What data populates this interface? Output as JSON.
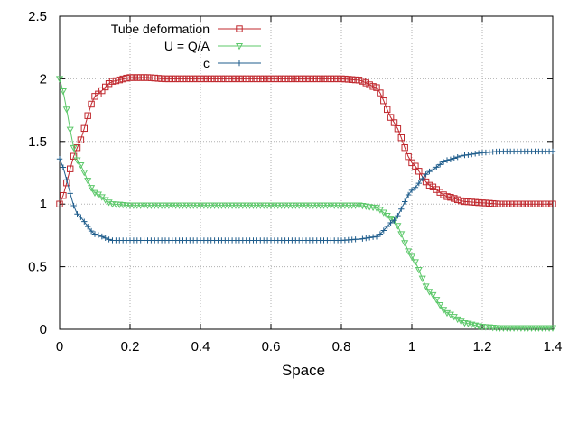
{
  "chart_data": {
    "type": "line",
    "title": "",
    "xlabel": "Space",
    "ylabel": "",
    "xlim": [
      0,
      1.4
    ],
    "ylim": [
      0,
      2.5
    ],
    "grid": true,
    "legend_position": "top-left",
    "x_ticks": [
      {
        "value": 0,
        "label": "0"
      },
      {
        "value": 0.2,
        "label": "0.2"
      },
      {
        "value": 0.4,
        "label": "0.4"
      },
      {
        "value": 0.6,
        "label": "0.6"
      },
      {
        "value": 0.8,
        "label": "0.8"
      },
      {
        "value": 1.0,
        "label": "1"
      },
      {
        "value": 1.2,
        "label": "1.2"
      },
      {
        "value": 1.4,
        "label": "1.4"
      }
    ],
    "y_ticks": [
      {
        "value": 0,
        "label": "0"
      },
      {
        "value": 0.5,
        "label": "0.5"
      },
      {
        "value": 1.0,
        "label": "1"
      },
      {
        "value": 1.5,
        "label": "1.5"
      },
      {
        "value": 2.0,
        "label": "2"
      },
      {
        "value": 2.5,
        "label": "2.5"
      }
    ],
    "x": [
      0,
      0.05,
      0.1,
      0.15,
      0.2,
      0.25,
      0.3,
      0.4,
      0.5,
      0.6,
      0.7,
      0.8,
      0.85,
      0.9,
      0.95,
      1.0,
      1.05,
      1.1,
      1.15,
      1.2,
      1.25,
      1.3,
      1.35,
      1.4
    ],
    "series": [
      {
        "name": "Tube deformation",
        "color": "#c0282e",
        "marker": "square",
        "values": [
          1.0,
          1.45,
          1.86,
          1.98,
          2.01,
          2.01,
          2.0,
          2.0,
          2.0,
          2.0,
          2.0,
          2.0,
          1.99,
          1.93,
          1.65,
          1.33,
          1.15,
          1.06,
          1.02,
          1.01,
          1.0,
          1.0,
          1.0,
          1.0
        ]
      },
      {
        "name": "U = Q/A",
        "color": "#5cc86a",
        "marker": "triangle-down",
        "values": [
          2.0,
          1.35,
          1.09,
          1.0,
          0.99,
          0.99,
          0.99,
          0.99,
          0.99,
          0.99,
          0.99,
          0.99,
          0.99,
          0.97,
          0.87,
          0.58,
          0.3,
          0.13,
          0.05,
          0.02,
          0.01,
          0.01,
          0.01,
          0.01
        ]
      },
      {
        "name": "c",
        "color": "#1f5d8c",
        "marker": "plus",
        "values": [
          1.36,
          0.92,
          0.76,
          0.71,
          0.71,
          0.71,
          0.71,
          0.71,
          0.71,
          0.71,
          0.71,
          0.71,
          0.72,
          0.74,
          0.87,
          1.11,
          1.26,
          1.35,
          1.39,
          1.41,
          1.42,
          1.42,
          1.42,
          1.42
        ]
      }
    ]
  }
}
